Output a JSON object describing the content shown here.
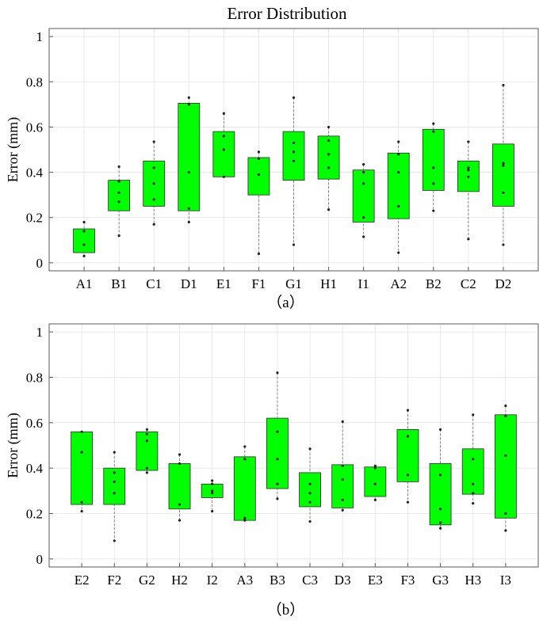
{
  "title": "Error Distribution",
  "colors": {
    "box_fill": "#00ff00",
    "box_stroke": "#2a2a2a",
    "point": "#222222"
  },
  "chart_data": [
    {
      "type": "box",
      "caption": "（a）",
      "ylabel": "Error (mm)",
      "ylim": [
        0,
        1
      ],
      "yticks": [
        "0",
        "0.2",
        "0.4",
        "0.6",
        "0.8",
        "1"
      ],
      "grid": true,
      "boxes": [
        {
          "label": "A1",
          "min": 0.03,
          "q1": 0.045,
          "q3": 0.15,
          "max": 0.18,
          "points": [
            0.03,
            0.08,
            0.14,
            0.18
          ]
        },
        {
          "label": "B1",
          "min": 0.12,
          "q1": 0.23,
          "q3": 0.365,
          "max": 0.425,
          "points": [
            0.12,
            0.27,
            0.31,
            0.36,
            0.425
          ]
        },
        {
          "label": "C1",
          "min": 0.17,
          "q1": 0.25,
          "q3": 0.45,
          "max": 0.535,
          "points": [
            0.17,
            0.28,
            0.35,
            0.42,
            0.535
          ]
        },
        {
          "label": "D1",
          "min": 0.18,
          "q1": 0.23,
          "q3": 0.705,
          "max": 0.73,
          "points": [
            0.18,
            0.24,
            0.4,
            0.7,
            0.73
          ]
        },
        {
          "label": "E1",
          "min": 0.38,
          "q1": 0.38,
          "q3": 0.58,
          "max": 0.66,
          "points": [
            0.38,
            0.5,
            0.56,
            0.66
          ]
        },
        {
          "label": "F1",
          "min": 0.04,
          "q1": 0.3,
          "q3": 0.465,
          "max": 0.49,
          "points": [
            0.04,
            0.39,
            0.46,
            0.49
          ]
        },
        {
          "label": "G1",
          "min": 0.08,
          "q1": 0.365,
          "q3": 0.58,
          "max": 0.73,
          "points": [
            0.08,
            0.45,
            0.49,
            0.53,
            0.73
          ]
        },
        {
          "label": "H1",
          "min": 0.235,
          "q1": 0.37,
          "q3": 0.56,
          "max": 0.6,
          "points": [
            0.235,
            0.42,
            0.48,
            0.54,
            0.6
          ]
        },
        {
          "label": "I1",
          "min": 0.115,
          "q1": 0.18,
          "q3": 0.41,
          "max": 0.435,
          "points": [
            0.115,
            0.2,
            0.35,
            0.4,
            0.435
          ]
        },
        {
          "label": "A2",
          "min": 0.045,
          "q1": 0.195,
          "q3": 0.485,
          "max": 0.535,
          "points": [
            0.045,
            0.25,
            0.4,
            0.48,
            0.535
          ]
        },
        {
          "label": "B2",
          "min": 0.23,
          "q1": 0.32,
          "q3": 0.59,
          "max": 0.615,
          "points": [
            0.23,
            0.35,
            0.42,
            0.58,
            0.615
          ]
        },
        {
          "label": "C2",
          "min": 0.105,
          "q1": 0.315,
          "q3": 0.45,
          "max": 0.535,
          "points": [
            0.105,
            0.38,
            0.41,
            0.42,
            0.535
          ]
        },
        {
          "label": "D2",
          "min": 0.08,
          "q1": 0.25,
          "q3": 0.525,
          "max": 0.785,
          "points": [
            0.08,
            0.31,
            0.43,
            0.44,
            0.785
          ]
        }
      ]
    },
    {
      "type": "box",
      "caption": "（b）",
      "ylabel": "Error (mm)",
      "ylim": [
        0,
        1
      ],
      "yticks": [
        "0",
        "0.2",
        "0.4",
        "0.6",
        "0.8",
        "1"
      ],
      "grid": true,
      "boxes": [
        {
          "label": "E2",
          "min": 0.21,
          "q1": 0.24,
          "q3": 0.56,
          "max": 0.56,
          "points": [
            0.21,
            0.25,
            0.47,
            0.56
          ]
        },
        {
          "label": "F2",
          "min": 0.08,
          "q1": 0.24,
          "q3": 0.4,
          "max": 0.47,
          "points": [
            0.08,
            0.29,
            0.34,
            0.38,
            0.47
          ]
        },
        {
          "label": "G2",
          "min": 0.38,
          "q1": 0.39,
          "q3": 0.56,
          "max": 0.57,
          "points": [
            0.38,
            0.4,
            0.52,
            0.55,
            0.57
          ]
        },
        {
          "label": "H2",
          "min": 0.17,
          "q1": 0.22,
          "q3": 0.42,
          "max": 0.46,
          "points": [
            0.17,
            0.24,
            0.42,
            0.46
          ]
        },
        {
          "label": "I2",
          "min": 0.21,
          "q1": 0.27,
          "q3": 0.33,
          "max": 0.345,
          "points": [
            0.21,
            0.29,
            0.3,
            0.33,
            0.345
          ]
        },
        {
          "label": "A3",
          "min": 0.17,
          "q1": 0.17,
          "q3": 0.45,
          "max": 0.495,
          "points": [
            0.17,
            0.18,
            0.44,
            0.495
          ]
        },
        {
          "label": "B3",
          "min": 0.265,
          "q1": 0.31,
          "q3": 0.62,
          "max": 0.82,
          "points": [
            0.265,
            0.33,
            0.44,
            0.56,
            0.82
          ]
        },
        {
          "label": "C3",
          "min": 0.165,
          "q1": 0.23,
          "q3": 0.38,
          "max": 0.485,
          "points": [
            0.165,
            0.25,
            0.29,
            0.33,
            0.485
          ]
        },
        {
          "label": "D3",
          "min": 0.215,
          "q1": 0.225,
          "q3": 0.415,
          "max": 0.605,
          "points": [
            0.215,
            0.26,
            0.35,
            0.41,
            0.605
          ]
        },
        {
          "label": "E3",
          "min": 0.26,
          "q1": 0.275,
          "q3": 0.405,
          "max": 0.41,
          "points": [
            0.26,
            0.33,
            0.4,
            0.41
          ]
        },
        {
          "label": "F3",
          "min": 0.25,
          "q1": 0.34,
          "q3": 0.57,
          "max": 0.655,
          "points": [
            0.25,
            0.37,
            0.54,
            0.655
          ]
        },
        {
          "label": "G3",
          "min": 0.135,
          "q1": 0.15,
          "q3": 0.42,
          "max": 0.57,
          "points": [
            0.135,
            0.16,
            0.22,
            0.37,
            0.57
          ]
        },
        {
          "label": "H3",
          "min": 0.245,
          "q1": 0.285,
          "q3": 0.485,
          "max": 0.635,
          "points": [
            0.245,
            0.29,
            0.33,
            0.44,
            0.635
          ]
        },
        {
          "label": "I3",
          "min": 0.125,
          "q1": 0.18,
          "q3": 0.635,
          "max": 0.675,
          "points": [
            0.125,
            0.2,
            0.455,
            0.63,
            0.675
          ]
        }
      ]
    }
  ]
}
